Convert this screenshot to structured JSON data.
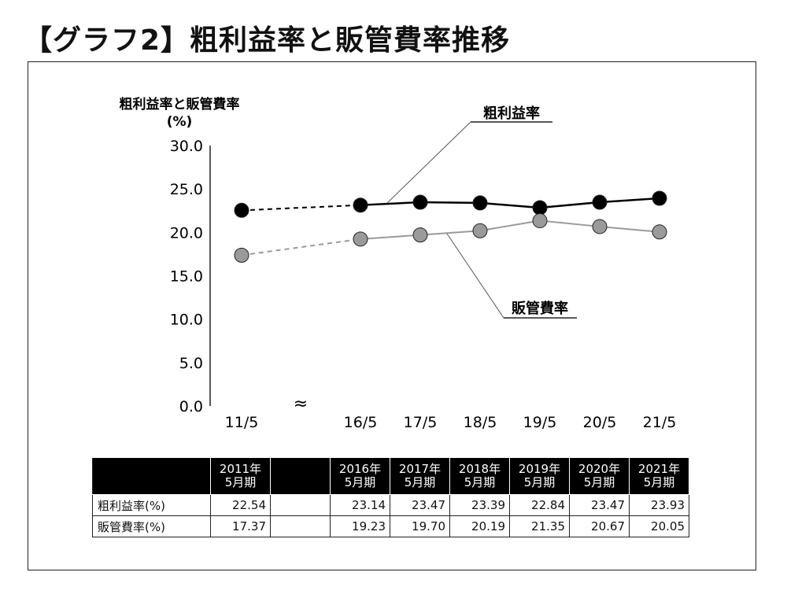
{
  "page": {
    "title": "【グラフ2】粗利益率と販管費率推移"
  },
  "chart_data": {
    "type": "line",
    "ylabel_line1": "粗利益率と販管費率",
    "ylabel_line2": "(%)",
    "ylim": [
      0,
      30
    ],
    "yticks": [
      "30.0",
      "25.0",
      "20.0",
      "15.0",
      "10.0",
      "5.0",
      "0.0"
    ],
    "ytick_values": [
      30,
      25,
      20,
      15,
      10,
      5,
      0
    ],
    "categories": [
      "11/5",
      "16/5",
      "17/5",
      "18/5",
      "19/5",
      "20/5",
      "21/5"
    ],
    "axis_break_symbol": "≈",
    "series": [
      {
        "name": "粗利益率",
        "values": [
          22.54,
          23.14,
          23.47,
          23.39,
          22.84,
          23.47,
          23.93
        ],
        "line_color": "#000000",
        "marker_color": "#000000"
      },
      {
        "name": "販管費率",
        "values": [
          17.37,
          19.23,
          19.7,
          20.19,
          21.35,
          20.67,
          20.05
        ],
        "line_color": "#9a9a9a",
        "marker_color": "#9a9a9a"
      }
    ],
    "dashed_first_segment": true,
    "grid": false
  },
  "table": {
    "header": [
      "2011年\n5月期",
      "2016年\n5月期",
      "2017年\n5月期",
      "2018年\n5月期",
      "2019年\n5月期",
      "2020年\n5月期",
      "2021年\n5月期"
    ],
    "rows": [
      {
        "label": "粗利益率(%)",
        "values": [
          "22.54",
          "23.14",
          "23.47",
          "23.39",
          "22.84",
          "23.47",
          "23.93"
        ]
      },
      {
        "label": "販管費率(%)",
        "values": [
          "17.37",
          "19.23",
          "19.70",
          "20.19",
          "21.35",
          "20.67",
          "20.05"
        ]
      }
    ]
  }
}
